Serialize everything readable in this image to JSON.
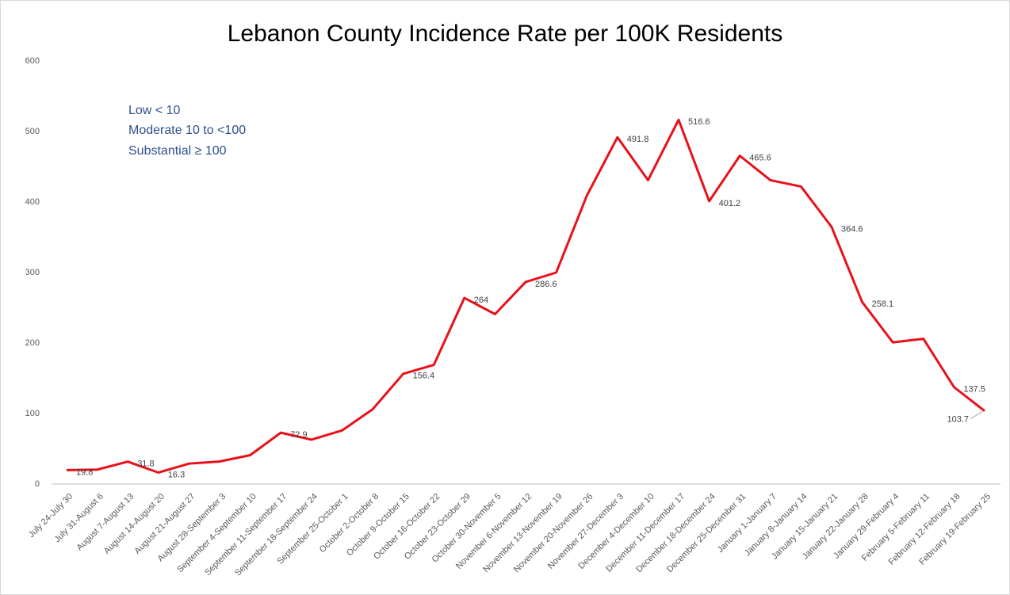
{
  "chart_data": {
    "type": "line",
    "title": "Lebanon County Incidence Rate per 100K Residents",
    "annotations": [
      "Low < 10",
      "Moderate 10 to <100",
      "Substantial ≥ 100"
    ],
    "categories": [
      "July 24-July 30",
      "July 31-August 6",
      "August 7-August 13",
      "August 14-August 20",
      "August 21-August 27",
      "August 28-September 3",
      "September 4-September 10",
      "September 11-September 17",
      "September 18-September 24",
      "September 25-October 1",
      "October 2-October 8",
      "October 9-October 15",
      "October 16-October 22",
      "October 23-October 29",
      "October 30-November 5",
      "November 6-November 12",
      "November 13-November 19",
      "November 20-November 26",
      "November 27-December 3",
      "December 4-December 10",
      "December 11-December 17",
      "December 18-December 24",
      "December 25-December 31",
      "January 1-January 7",
      "January 8-January 14",
      "January 15-January 21",
      "January 22-January 28",
      "January 29-February 4",
      "February 5-February 11",
      "February 12-February 18",
      "February 19-February 25"
    ],
    "series": [
      {
        "name": "Incidence Rate",
        "color": "#e8111a",
        "values": [
          19.8,
          20.5,
          31.8,
          16.3,
          29,
          32,
          41,
          72.9,
          63,
          76,
          106,
          156.4,
          169,
          264,
          241,
          286.6,
          300,
          409,
          491.8,
          431,
          516.6,
          401.2,
          465.6,
          431,
          422,
          364.6,
          258.1,
          201,
          206,
          137.5,
          103.7
        ],
        "value_labels": [
          "19.8",
          null,
          "31.8",
          "16.3",
          null,
          null,
          null,
          "72.9",
          null,
          null,
          null,
          "156.4",
          null,
          "264",
          null,
          "286.6",
          null,
          null,
          "491.8",
          null,
          "516.6",
          "401.2",
          "465.6",
          null,
          null,
          "364.6",
          "258.1",
          null,
          null,
          "137.5",
          "103.7"
        ]
      }
    ],
    "ylim": [
      0,
      600
    ],
    "yticks": [
      0,
      100,
      200,
      300,
      400,
      500,
      600
    ],
    "grid": false
  }
}
